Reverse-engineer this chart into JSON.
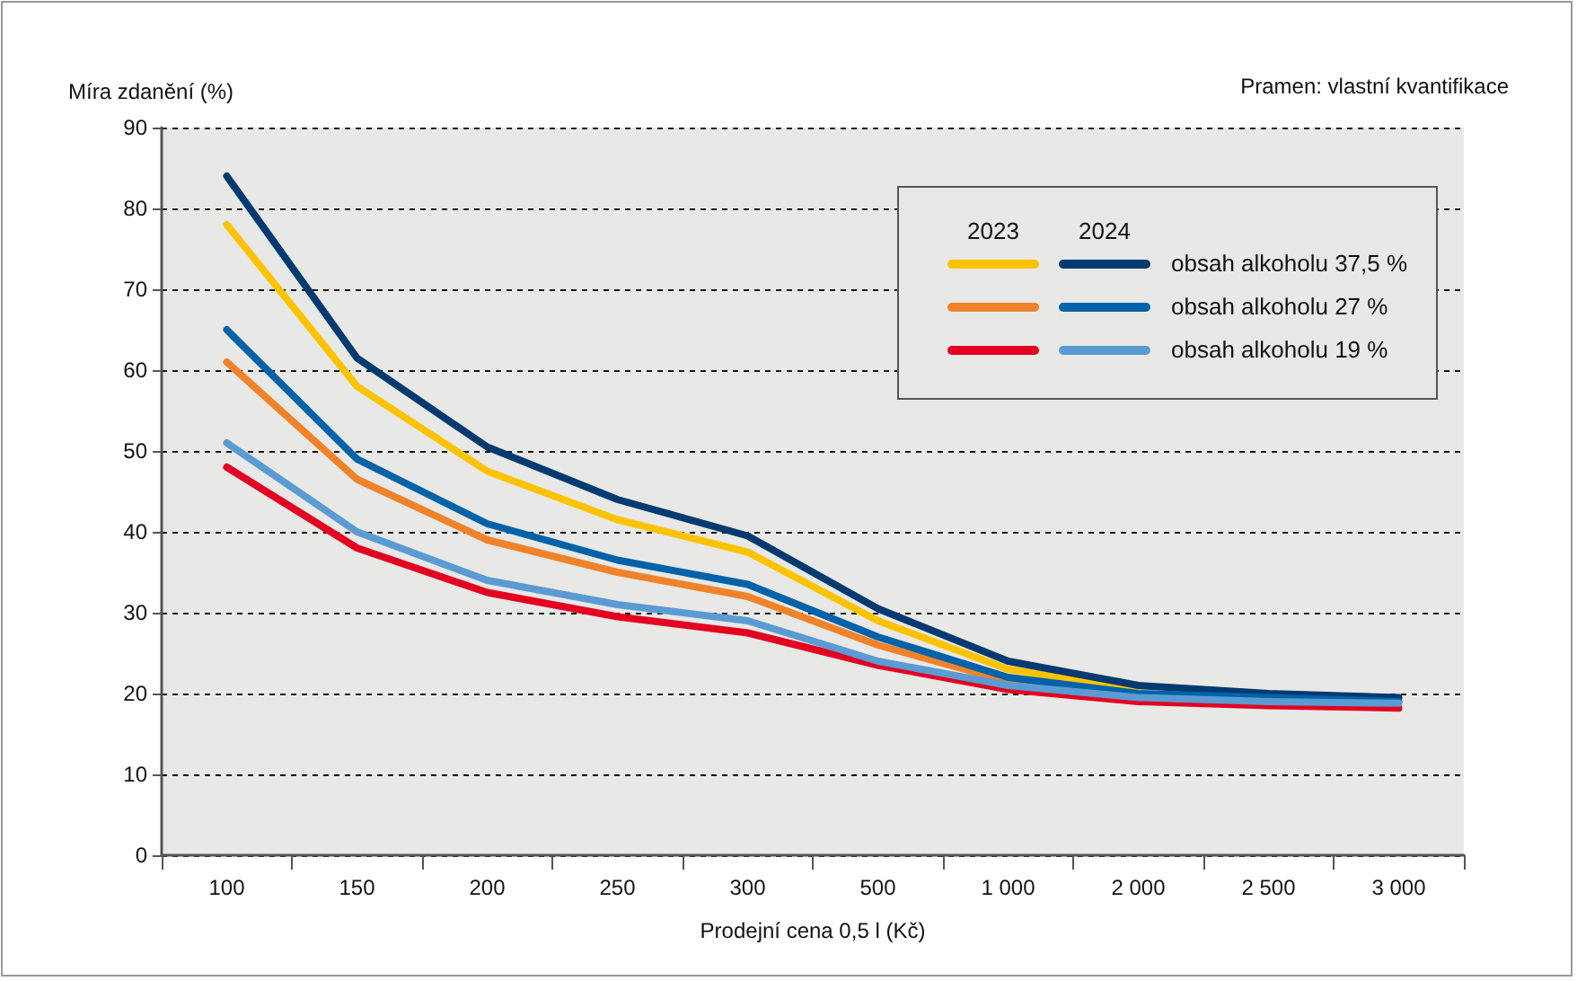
{
  "chart_data": {
    "type": "line",
    "ylabel": "Míra zdanění (%)",
    "xlabel": "Prodejní cena 0,5 l (Kč)",
    "annotations": [
      "Pramen: vlastní kvantifikace",
      "2023",
      "2024"
    ],
    "categories": [
      "100",
      "150",
      "200",
      "250",
      "300",
      "500",
      "1 000",
      "2 000",
      "2 500",
      "3 000"
    ],
    "series": [
      {
        "color": "#fdc300",
        "values": [
          78,
          58,
          47.5,
          41.5,
          37.5,
          29,
          23,
          20.5,
          null,
          null
        ]
      },
      {
        "name": "obsah alkoholu 37,5 %",
        "color": "#003a70",
        "values": [
          84,
          61.5,
          50.5,
          44,
          39.5,
          30.5,
          24,
          21,
          20,
          19.5
        ]
      },
      {
        "color": "#f0832a",
        "values": [
          61,
          46.5,
          39,
          35,
          32,
          26,
          21.5,
          19.5,
          null,
          null
        ]
      },
      {
        "name": "obsah alkoholu 27 %",
        "color": "#0062a8",
        "values": [
          65,
          49,
          41,
          36.5,
          33.5,
          27,
          22,
          20,
          19.5,
          19
        ]
      },
      {
        "color": "#e30020",
        "values": [
          48,
          38,
          32.5,
          29.5,
          27.5,
          23.5,
          20.5,
          19,
          18.5,
          18.2
        ]
      },
      {
        "name": "obsah alkoholu 19 %",
        "color": "#5b9bd3",
        "values": [
          51,
          40,
          34,
          31,
          29,
          24,
          21,
          19.5,
          19,
          18.8
        ]
      }
    ],
    "ylim": [
      0,
      90
    ],
    "yticks": [
      0,
      10,
      20,
      30,
      40,
      50,
      60,
      70,
      80,
      90
    ],
    "grid": "y",
    "legend": "top right",
    "marker": "none",
    "line_style": "solid"
  }
}
